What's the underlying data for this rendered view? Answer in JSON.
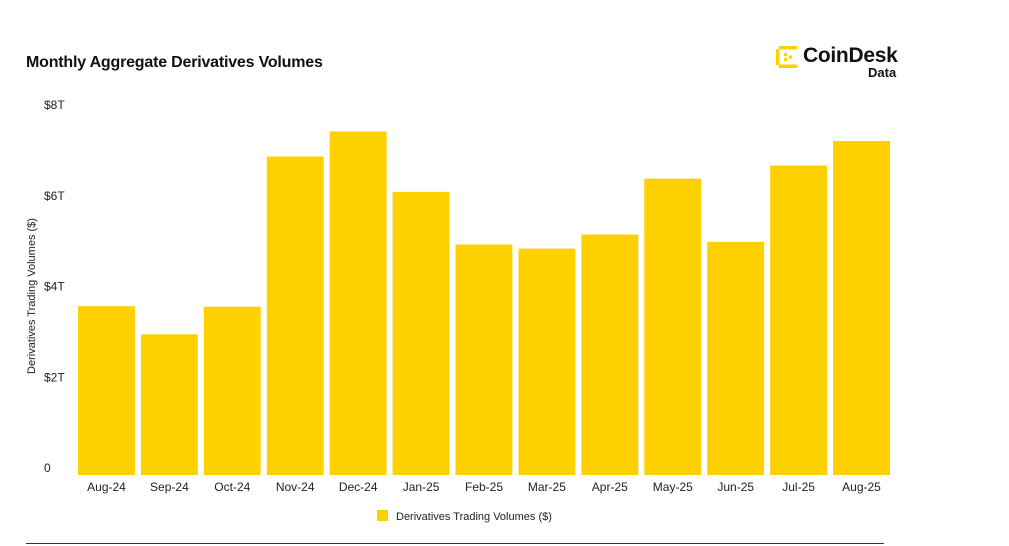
{
  "header": {
    "title": "Monthly Aggregate Derivatives Volumes"
  },
  "logo": {
    "brand": "CoinDesk",
    "sub": "Data",
    "icon": "coindesk-mark-icon"
  },
  "colors": {
    "bar": "#FFD000",
    "text": "#222222"
  },
  "chart_data": {
    "type": "bar",
    "title": "Monthly Aggregate Derivatives Volumes",
    "xlabel": "",
    "ylabel": "Derivatives Trading Volumes ($)",
    "ylim": [
      0,
      8
    ],
    "yticks": [
      0,
      2,
      4,
      6,
      8
    ],
    "ytick_labels": [
      "0",
      "$2T",
      "$4T",
      "$6T",
      "$8T"
    ],
    "grid": false,
    "legend": "bottom-center",
    "categories": [
      "Aug-24",
      "Sep-24",
      "Oct-24",
      "Nov-24",
      "Dec-24",
      "Jan-25",
      "Feb-25",
      "Mar-25",
      "Apr-25",
      "May-25",
      "Jun-25",
      "Jul-25",
      "Aug-25"
    ],
    "series": [
      {
        "name": "Derivatives Trading Volumes ($)",
        "values": [
          3.72,
          3.1,
          3.71,
          7.02,
          7.57,
          6.24,
          5.08,
          4.99,
          5.3,
          6.53,
          5.14,
          6.82,
          7.36
        ]
      }
    ]
  }
}
